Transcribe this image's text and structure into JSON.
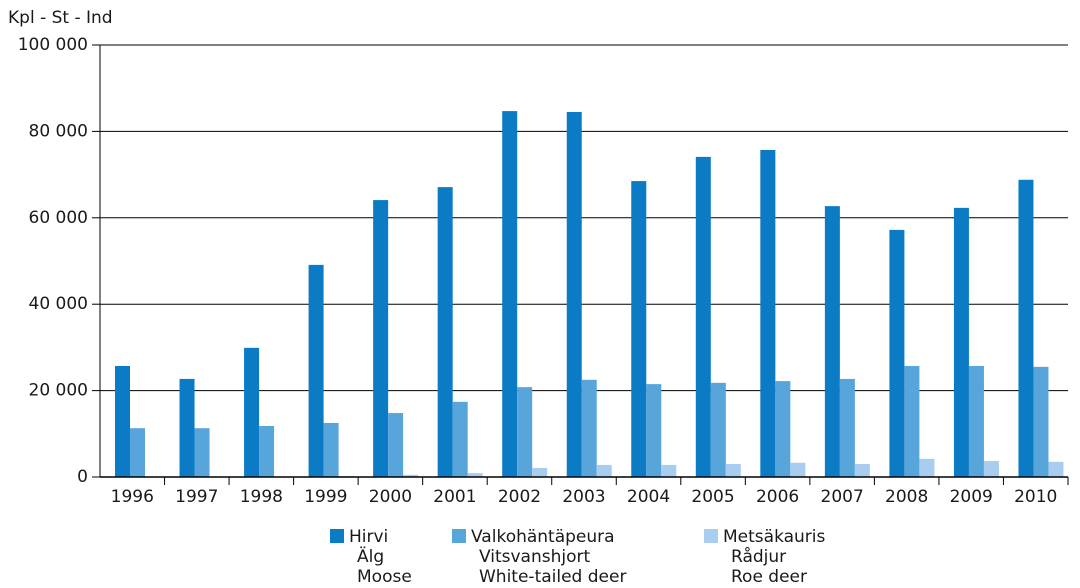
{
  "chart_data": {
    "type": "bar",
    "y_label": "Kpl - St - Ind",
    "categories": [
      "1996",
      "1997",
      "1998",
      "1999",
      "2000",
      "2001",
      "2002",
      "2003",
      "2004",
      "2005",
      "2006",
      "2007",
      "2008",
      "2009",
      "2010"
    ],
    "series": [
      {
        "name": [
          "Hirvi",
          "Älg",
          "Moose"
        ],
        "color": "#0a7bc4",
        "values": [
          25700,
          22700,
          29900,
          49100,
          64100,
          67100,
          84700,
          84500,
          68500,
          74100,
          75700,
          62700,
          57200,
          62300,
          68800
        ]
      },
      {
        "name": [
          "Valkohäntäpeura",
          "Vitsvanshjort",
          "White-tailed deer"
        ],
        "color": "#57a5db",
        "values": [
          11300,
          11300,
          11800,
          12500,
          14800,
          17400,
          20800,
          22500,
          21500,
          21800,
          22200,
          22700,
          25700,
          25700,
          25500
        ]
      },
      {
        "name": [
          "Metsäkauris",
          "Rådjur",
          "Roe deer"
        ],
        "color": "#a9cdee",
        "values": [
          100,
          100,
          100,
          200,
          500,
          900,
          2100,
          2800,
          2800,
          3000,
          3300,
          3000,
          4200,
          3700,
          3500
        ]
      }
    ],
    "ylim": [
      0,
      100000
    ],
    "yticks": [
      0,
      {
        "value": 20000,
        "label": "20 000"
      },
      {
        "value": 40000,
        "label": "40 000"
      },
      {
        "value": 60000,
        "label": "60 000"
      },
      {
        "value": 80000,
        "label": "80 000"
      },
      {
        "value": 100000,
        "label": "100 000"
      }
    ],
    "grid": true
  }
}
